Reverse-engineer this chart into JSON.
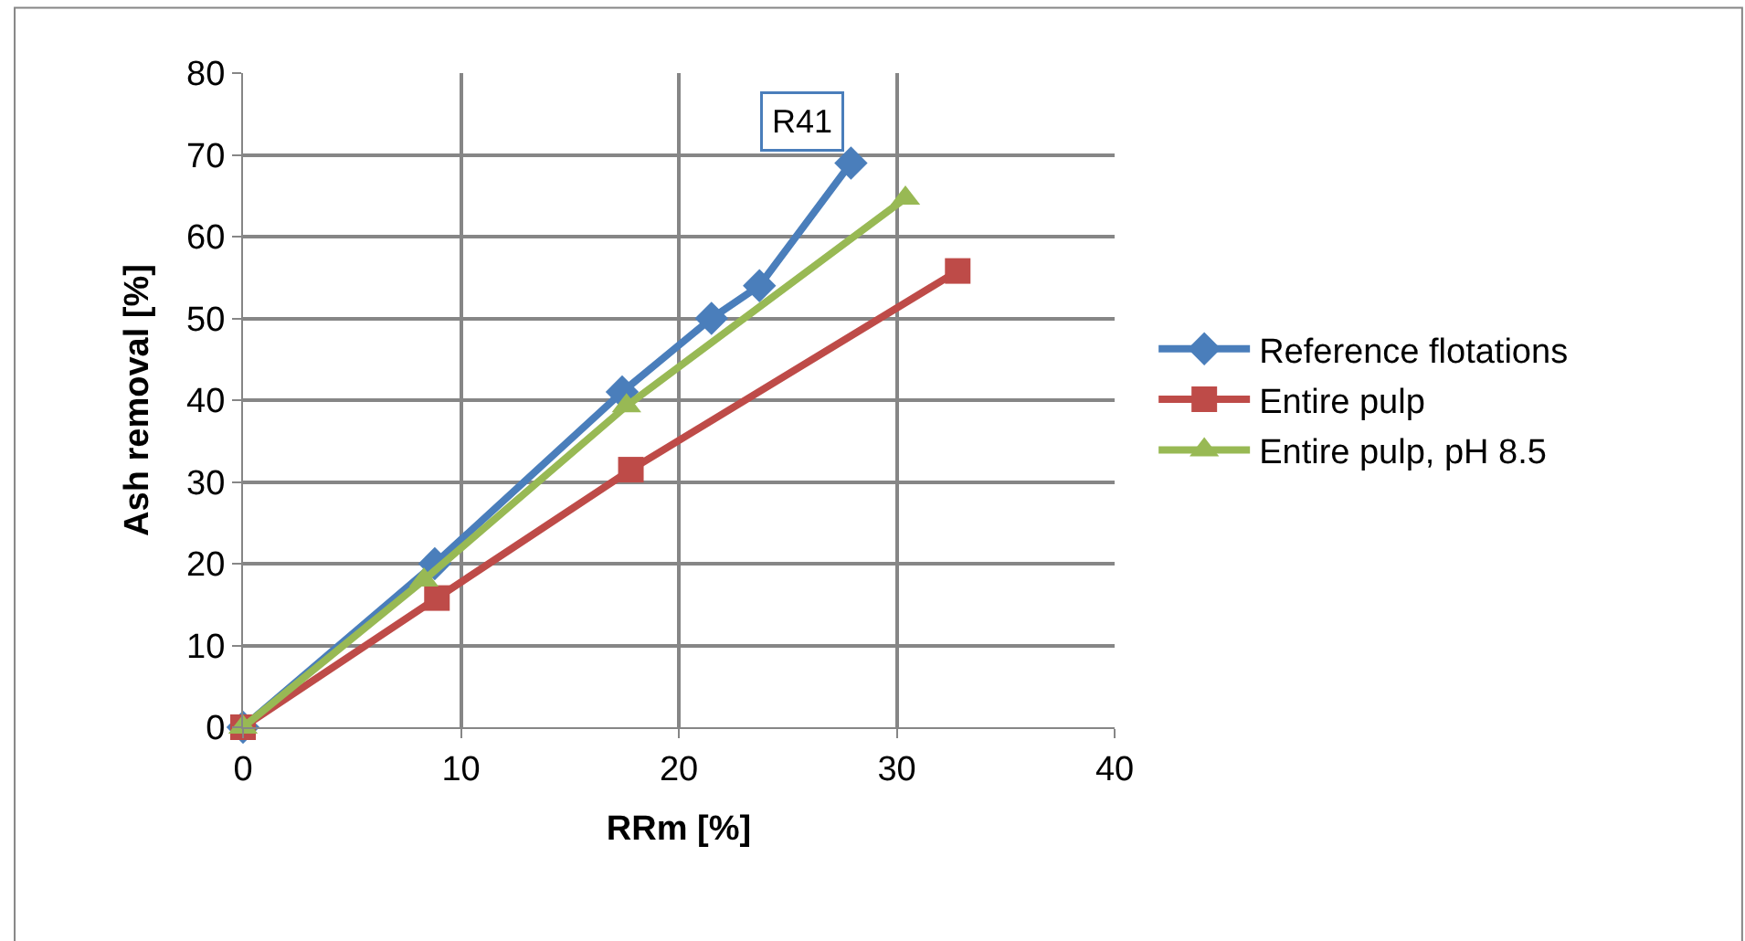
{
  "chart_data": {
    "type": "line",
    "xlabel": "RRm [%]",
    "ylabel": "Ash removal [%]",
    "xlim": [
      0,
      40
    ],
    "xticks": [
      0,
      10,
      20,
      30,
      40
    ],
    "ylim": [
      0,
      80
    ],
    "yticks": [
      0,
      10,
      20,
      30,
      40,
      50,
      60,
      70,
      80
    ],
    "grid": true,
    "legend": "right",
    "annotations": [
      {
        "text": "R41",
        "x": 27.9,
        "y": 69
      }
    ],
    "series": [
      {
        "name": "Reference flotations",
        "color": "#4a7ebb",
        "marker": "diamond",
        "x": [
          0,
          8.8,
          17.4,
          21.5,
          23.7,
          27.9
        ],
        "values": [
          0,
          20,
          41,
          50,
          54,
          69
        ]
      },
      {
        "name": "Entire pulp",
        "color": "#be4b48",
        "marker": "square",
        "x": [
          0,
          8.9,
          17.8,
          32.8
        ],
        "values": [
          0,
          15.8,
          31.5,
          55.8
        ]
      },
      {
        "name": "Entire pulp, pH 8.5",
        "color": "#98b954",
        "marker": "triangle",
        "x": [
          0,
          8.3,
          17.6,
          30.4
        ],
        "values": [
          0,
          18,
          39.3,
          64.7
        ]
      }
    ]
  }
}
